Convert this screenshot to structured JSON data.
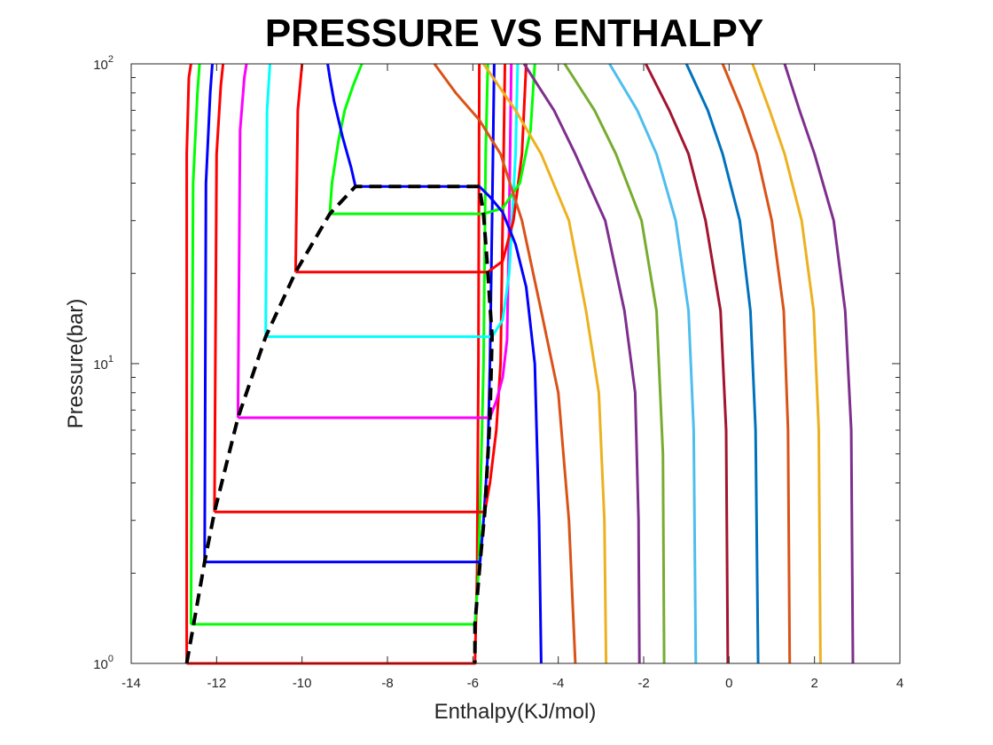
{
  "chart_data": {
    "type": "line",
    "title": "PRESSURE VS ENTHALPY",
    "xlabel": "Enthalpy(KJ/mol)",
    "ylabel": "Pressure(bar)",
    "xlim": [
      -14,
      4
    ],
    "ylim": [
      1,
      100
    ],
    "yscale": "log",
    "grid": false,
    "legend": "none",
    "xticks": [
      -14,
      -12,
      -10,
      -8,
      -6,
      -4,
      -2,
      0,
      2,
      4
    ],
    "xtick_labels": [
      "-14",
      "-12",
      "-10",
      "-8",
      "-6",
      "-4",
      "-2",
      "0",
      "2",
      "4"
    ],
    "yticks": [
      {
        "base": "10",
        "exp": "0",
        "value": 1
      },
      {
        "base": "10",
        "exp": "1",
        "value": 10
      },
      {
        "base": "10",
        "exp": "2",
        "value": 100
      }
    ],
    "series": [
      {
        "color": "#ff0000",
        "points": [
          [
            -12.7,
            1.0
          ],
          [
            -12.7,
            50
          ],
          [
            -12.65,
            90
          ],
          [
            -12.6,
            100
          ]
        ]
      },
      {
        "color": "#00ff00",
        "points": [
          [
            -12.6,
            1.35
          ],
          [
            -12.55,
            40
          ],
          [
            -12.45,
            80
          ],
          [
            -12.4,
            100
          ]
        ]
      },
      {
        "color": "#0000ff",
        "points": [
          [
            -12.28,
            2.18
          ],
          [
            -12.25,
            40
          ],
          [
            -12.15,
            80
          ],
          [
            -12.1,
            100
          ]
        ]
      },
      {
        "color": "#ff0000",
        "points": [
          [
            -12.05,
            3.2
          ],
          [
            -12.0,
            50
          ],
          [
            -11.9,
            85
          ],
          [
            -11.85,
            100
          ]
        ]
      },
      {
        "color": "#ff00ff",
        "points": [
          [
            -11.5,
            6.6
          ],
          [
            -11.45,
            60
          ],
          [
            -11.35,
            90
          ],
          [
            -11.3,
            100
          ]
        ]
      },
      {
        "color": "#00ffff",
        "points": [
          [
            -10.85,
            12.3
          ],
          [
            -10.82,
            70
          ],
          [
            -10.75,
            100
          ]
        ]
      },
      {
        "color": "#ff0000",
        "points": [
          [
            -10.15,
            20.2
          ],
          [
            -10.1,
            70
          ],
          [
            -10.0,
            100
          ]
        ]
      },
      {
        "color": "#00ff00",
        "points": [
          [
            -9.35,
            31.6
          ],
          [
            -9.3,
            40
          ],
          [
            -9.15,
            55
          ],
          [
            -9.0,
            70
          ],
          [
            -8.8,
            85
          ],
          [
            -8.6,
            100
          ]
        ]
      },
      {
        "color": "#0000ff",
        "points": [
          [
            -8.75,
            39
          ],
          [
            -8.85,
            45
          ],
          [
            -9.05,
            57
          ],
          [
            -9.25,
            75
          ],
          [
            -9.35,
            90
          ],
          [
            -9.4,
            100
          ]
        ]
      },
      {
        "color": "#ff0000",
        "points": [
          [
            -12.7,
            1.0
          ],
          [
            -5.95,
            1.0
          ],
          [
            -5.9,
            2
          ],
          [
            -5.87,
            10
          ],
          [
            -5.85,
            100
          ]
        ]
      },
      {
        "color": "#00ff00",
        "points": [
          [
            -12.6,
            1.35
          ],
          [
            -5.95,
            1.35
          ],
          [
            -5.87,
            2
          ],
          [
            -5.8,
            5
          ],
          [
            -5.75,
            10
          ],
          [
            -5.7,
            50
          ],
          [
            -5.65,
            100
          ]
        ]
      },
      {
        "color": "#0000ff",
        "points": [
          [
            -12.28,
            2.18
          ],
          [
            -5.83,
            2.18
          ],
          [
            -5.75,
            3
          ],
          [
            -5.65,
            5
          ],
          [
            -5.6,
            10
          ],
          [
            -5.55,
            30
          ],
          [
            -5.5,
            100
          ]
        ]
      },
      {
        "color": "#ff0000",
        "points": [
          [
            -12.05,
            3.2
          ],
          [
            -5.72,
            3.2
          ],
          [
            -5.6,
            4
          ],
          [
            -5.45,
            6
          ],
          [
            -5.35,
            10
          ],
          [
            -5.3,
            30
          ],
          [
            -5.25,
            100
          ]
        ]
      },
      {
        "color": "#ff00ff",
        "points": [
          [
            -11.5,
            6.6
          ],
          [
            -5.6,
            6.6
          ],
          [
            -5.45,
            7.5
          ],
          [
            -5.3,
            9
          ],
          [
            -5.2,
            12
          ],
          [
            -5.15,
            30
          ],
          [
            -5.1,
            100
          ]
        ]
      },
      {
        "color": "#00ffff",
        "points": [
          [
            -10.85,
            12.3
          ],
          [
            -5.55,
            12.3
          ],
          [
            -5.3,
            14
          ],
          [
            -5.15,
            20
          ],
          [
            -5.0,
            50
          ],
          [
            -4.95,
            100
          ]
        ]
      },
      {
        "color": "#ff0000",
        "points": [
          [
            -10.15,
            20.2
          ],
          [
            -5.65,
            20.2
          ],
          [
            -5.3,
            22
          ],
          [
            -5.05,
            30
          ],
          [
            -4.85,
            50
          ],
          [
            -4.75,
            100
          ]
        ]
      },
      {
        "color": "#00ff00",
        "points": [
          [
            -9.35,
            31.6
          ],
          [
            -5.75,
            31.6
          ],
          [
            -5.3,
            33
          ],
          [
            -4.9,
            40
          ],
          [
            -4.65,
            60
          ],
          [
            -4.55,
            100
          ]
        ]
      },
      {
        "color": "#0000ff",
        "points": [
          [
            -8.75,
            39
          ],
          [
            -5.85,
            39
          ],
          [
            -5.6,
            36
          ],
          [
            -5.3,
            32
          ],
          [
            -5.0,
            25
          ],
          [
            -4.75,
            18
          ],
          [
            -4.55,
            10
          ],
          [
            -4.45,
            3
          ],
          [
            -4.4,
            1
          ]
        ]
      },
      {
        "color": "#d95319",
        "points": [
          [
            -6.9,
            100
          ],
          [
            -6.4,
            80
          ],
          [
            -5.85,
            65
          ],
          [
            -5.35,
            50
          ],
          [
            -4.85,
            30
          ],
          [
            -4.4,
            15
          ],
          [
            -4.0,
            8
          ],
          [
            -3.75,
            3
          ],
          [
            -3.6,
            1
          ]
        ]
      },
      {
        "color": "#edb120",
        "points": [
          [
            -5.75,
            100
          ],
          [
            -5.0,
            70
          ],
          [
            -4.4,
            50
          ],
          [
            -3.75,
            30
          ],
          [
            -3.35,
            15
          ],
          [
            -3.05,
            8
          ],
          [
            -2.92,
            3
          ],
          [
            -2.88,
            1
          ]
        ]
      },
      {
        "color": "#7e2f8e",
        "points": [
          [
            -4.8,
            100
          ],
          [
            -4.1,
            70
          ],
          [
            -3.6,
            50
          ],
          [
            -2.9,
            30
          ],
          [
            -2.45,
            15
          ],
          [
            -2.2,
            8
          ],
          [
            -2.12,
            3
          ],
          [
            -2.1,
            1
          ]
        ]
      },
      {
        "color": "#77ac30",
        "points": [
          [
            -3.85,
            100
          ],
          [
            -3.15,
            70
          ],
          [
            -2.65,
            50
          ],
          [
            -2.05,
            30
          ],
          [
            -1.7,
            15
          ],
          [
            -1.55,
            5
          ],
          [
            -1.52,
            1
          ]
        ]
      },
      {
        "color": "#4dbeee",
        "points": [
          [
            -2.8,
            100
          ],
          [
            -2.15,
            70
          ],
          [
            -1.7,
            50
          ],
          [
            -1.25,
            30
          ],
          [
            -0.95,
            15
          ],
          [
            -0.83,
            6
          ],
          [
            -0.78,
            1
          ]
        ]
      },
      {
        "color": "#a2142f",
        "points": [
          [
            -1.95,
            100
          ],
          [
            -1.4,
            70
          ],
          [
            -0.95,
            50
          ],
          [
            -0.55,
            30
          ],
          [
            -0.2,
            15
          ],
          [
            -0.07,
            6
          ],
          [
            -0.03,
            1
          ]
        ]
      },
      {
        "color": "#0072bd",
        "points": [
          [
            -1.0,
            100
          ],
          [
            -0.5,
            70
          ],
          [
            -0.15,
            50
          ],
          [
            0.25,
            30
          ],
          [
            0.5,
            15
          ],
          [
            0.62,
            6
          ],
          [
            0.68,
            1
          ]
        ]
      },
      {
        "color": "#d95319",
        "points": [
          [
            -0.15,
            100
          ],
          [
            0.3,
            70
          ],
          [
            0.65,
            50
          ],
          [
            1.0,
            30
          ],
          [
            1.28,
            15
          ],
          [
            1.38,
            6
          ],
          [
            1.42,
            1
          ]
        ]
      },
      {
        "color": "#edb120",
        "points": [
          [
            0.55,
            100
          ],
          [
            0.95,
            70
          ],
          [
            1.3,
            50
          ],
          [
            1.7,
            30
          ],
          [
            1.98,
            15
          ],
          [
            2.1,
            6
          ],
          [
            2.14,
            1
          ]
        ]
      },
      {
        "color": "#7e2f8e",
        "points": [
          [
            1.3,
            100
          ],
          [
            1.65,
            70
          ],
          [
            2.0,
            50
          ],
          [
            2.45,
            30
          ],
          [
            2.72,
            15
          ],
          [
            2.86,
            6
          ],
          [
            2.9,
            1
          ]
        ]
      },
      {
        "color": "#000000",
        "dashed": true,
        "points": [
          [
            -12.7,
            1.0
          ],
          [
            -12.28,
            2.18
          ],
          [
            -12.05,
            3.2
          ],
          [
            -11.5,
            6.6
          ],
          [
            -10.85,
            12.3
          ],
          [
            -10.15,
            20.2
          ],
          [
            -9.35,
            31.6
          ],
          [
            -8.75,
            39
          ],
          [
            -5.85,
            39
          ],
          [
            -5.75,
            31.6
          ],
          [
            -5.65,
            20.2
          ],
          [
            -5.55,
            12.3
          ],
          [
            -5.6,
            6.6
          ],
          [
            -5.72,
            3.2
          ],
          [
            -5.83,
            2.18
          ],
          [
            -5.95,
            1.35
          ],
          [
            -5.95,
            1.0
          ]
        ]
      }
    ]
  }
}
